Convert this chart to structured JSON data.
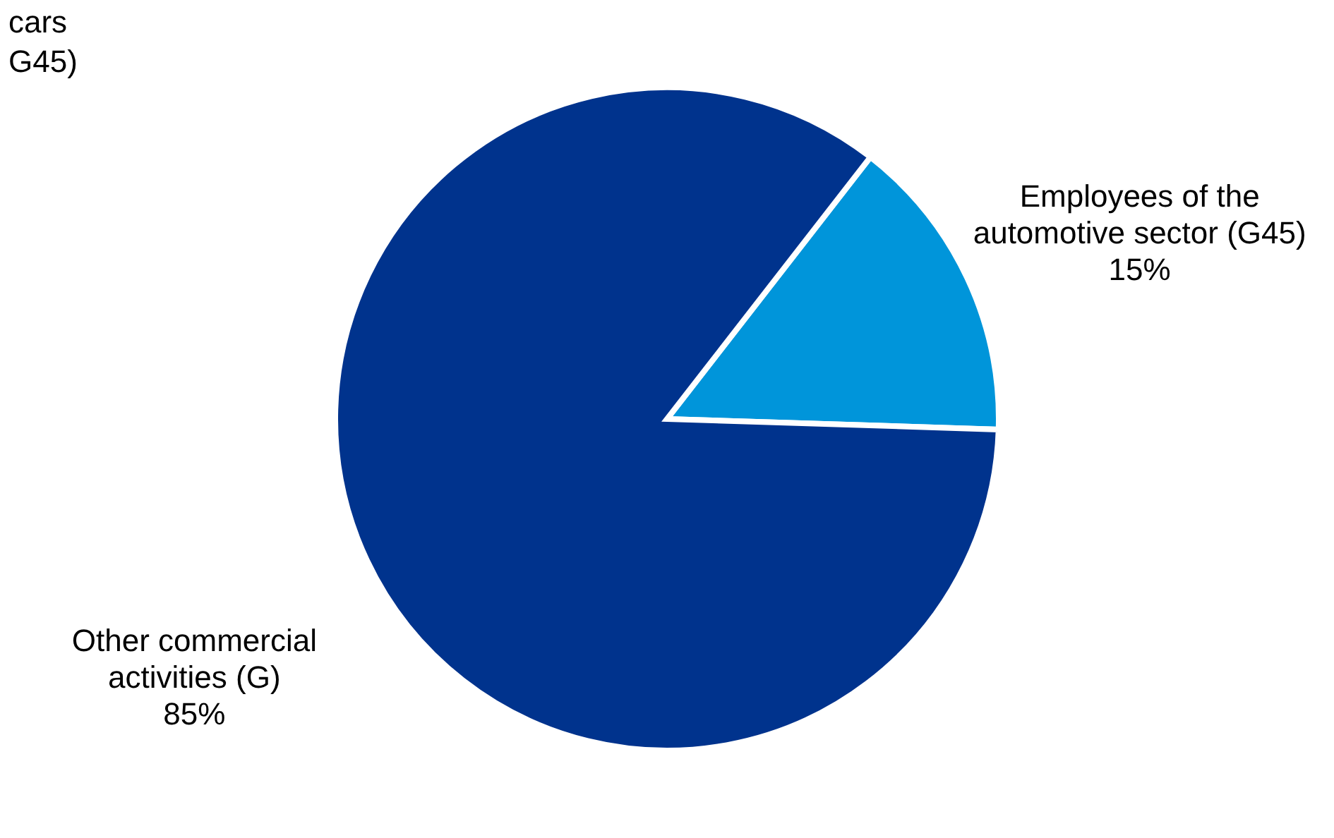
{
  "chart_data": {
    "type": "pie",
    "categories": [
      "Employees of the automotive sector (G45)",
      "Other commercial activities (G)"
    ],
    "values": [
      15,
      85
    ],
    "colors": [
      "#0095da",
      "#00338d"
    ],
    "value_labels": [
      "15%",
      "85%"
    ],
    "annotations": [
      "cars",
      "G45)"
    ]
  }
}
